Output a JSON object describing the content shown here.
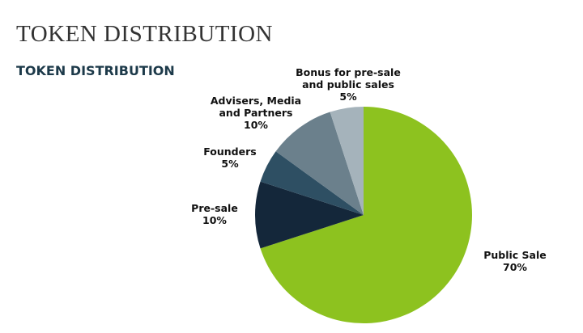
{
  "page_heading": "TOKEN DISTRIBUTION",
  "chart_data": {
    "type": "pie",
    "title": "TOKEN DISTRIBUTION",
    "categories": [
      "Public Sale",
      "Pre-sale",
      "Founders",
      "Advisers, Media and Partners",
      "Bonus for pre-sale and public sales"
    ],
    "values": [
      70,
      10,
      5,
      10,
      5
    ],
    "value_labels": [
      "70%",
      "10%",
      "5%",
      "10%",
      "5%"
    ],
    "colors": [
      "#8dc21f",
      "#14273a",
      "#2e4f63",
      "#6b808c",
      "#a5b3bb"
    ]
  }
}
